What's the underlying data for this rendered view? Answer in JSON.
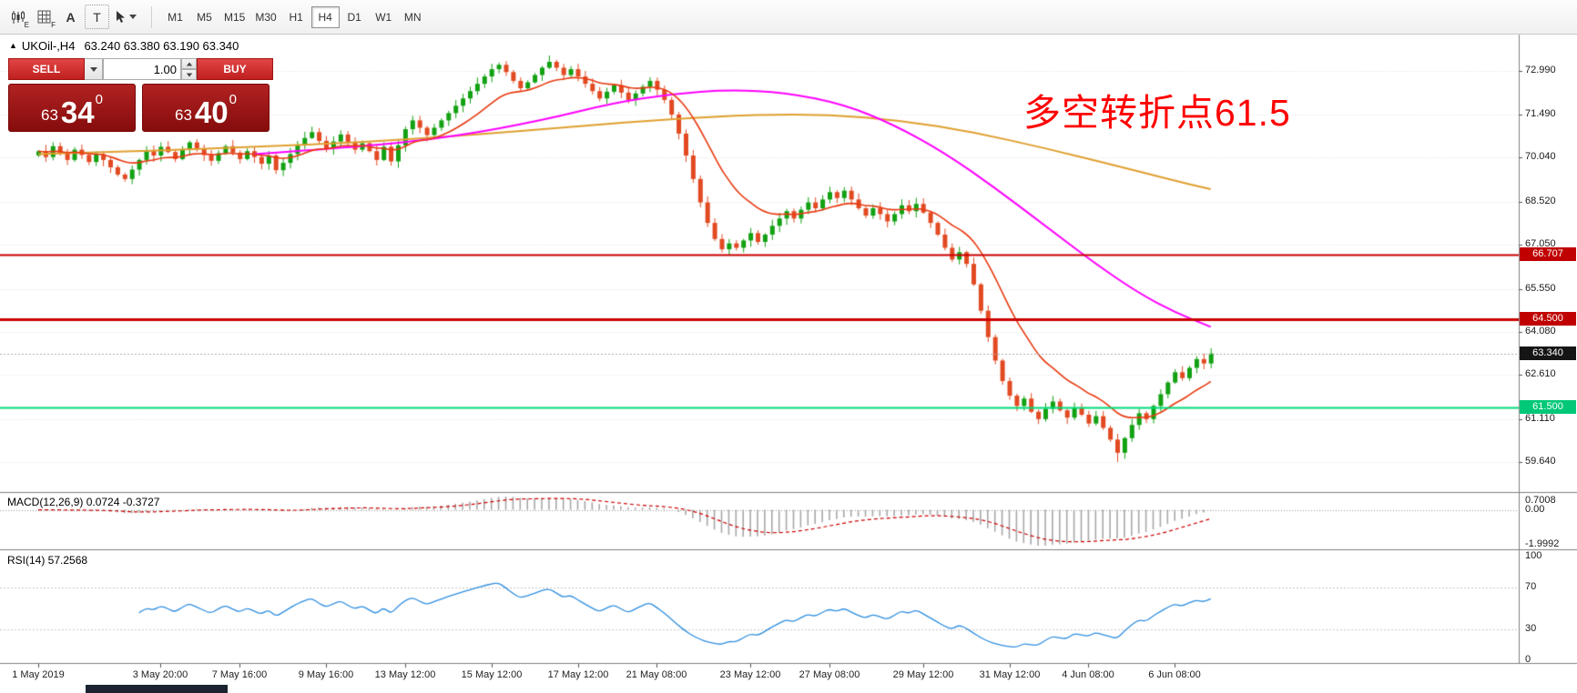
{
  "toolbar": {
    "glyph_e": "E",
    "glyph_f": "F",
    "glyph_a": "A",
    "glyph_t": "T",
    "timeframes": [
      {
        "label": "M1"
      },
      {
        "label": "M5"
      },
      {
        "label": "M15"
      },
      {
        "label": "M30"
      },
      {
        "label": "H1"
      },
      {
        "label": "H4",
        "active": true
      },
      {
        "label": "D1"
      },
      {
        "label": "W1"
      },
      {
        "label": "MN"
      }
    ]
  },
  "chart_header": {
    "collapse_glyph": "▲",
    "symbol": "UKOil-,H4",
    "ohlc": "63.240 63.380 63.190 63.340"
  },
  "trade_panel": {
    "sell_label": "SELL",
    "buy_label": "BUY",
    "volume": "1.00",
    "bid": {
      "prefix": "63",
      "big": "34",
      "sup": "0"
    },
    "ask": {
      "prefix": "63",
      "big": "40",
      "sup": "0"
    }
  },
  "annotation": {
    "text": "多空转折点61.5",
    "color": "#FF0000"
  },
  "price_axis": {
    "labels": [
      "72.990",
      "71.490",
      "70.040",
      "68.520",
      "67.050",
      "65.550",
      "64.080",
      "62.610",
      "61.110",
      "59.640"
    ]
  },
  "price_tags": [
    {
      "text": "66.707",
      "price": 66.707,
      "bg": "#C00000",
      "fg": "#FFFFFF"
    },
    {
      "text": "64.500",
      "price": 64.5,
      "bg": "#C00000",
      "fg": "#FFFFFF"
    },
    {
      "text": "63.340",
      "price": 63.34,
      "bg": "#151515",
      "fg": "#FFFFFF"
    },
    {
      "text": "61.500",
      "price": 61.5,
      "bg": "#00C878",
      "fg": "#FFFFFF"
    }
  ],
  "hlines": [
    {
      "price": 66.707,
      "color": "#CC0000",
      "width": 2
    },
    {
      "price": 64.5,
      "color": "#CC0000",
      "width": 3
    },
    {
      "price": 61.5,
      "color": "#00DC78",
      "width": 2
    }
  ],
  "current_price": {
    "price": 63.34,
    "line_color": "#AAAAAA"
  },
  "time_axis": {
    "labels": [
      {
        "text": "1 May 2019",
        "index": 0
      },
      {
        "text": "3 May 20:00",
        "index": 17
      },
      {
        "text": "7 May 16:00",
        "index": 28
      },
      {
        "text": "9 May 16:00",
        "index": 40
      },
      {
        "text": "13 May 12:00",
        "index": 51
      },
      {
        "text": "15 May 12:00",
        "index": 63
      },
      {
        "text": "17 May 12:00",
        "index": 75
      },
      {
        "text": "21 May 08:00",
        "index": 86
      },
      {
        "text": "23 May 12:00",
        "index": 99
      },
      {
        "text": "27 May 08:00",
        "index": 110
      },
      {
        "text": "29 May 12:00",
        "index": 123
      },
      {
        "text": "31 May 12:00",
        "index": 135
      },
      {
        "text": "4 Jun 08:00",
        "index": 146
      },
      {
        "text": "6 Jun 08:00",
        "index": 158
      }
    ]
  },
  "indicators": {
    "macd": {
      "label": "MACD(12,26,9) 0.0724 -0.3727",
      "axis_top": "0.7008",
      "axis_zero": "0.00",
      "axis_bottom": "-1.9992",
      "histogram_color": "#A8A8A8",
      "signal_color": "#CC0000"
    },
    "rsi": {
      "label": "RSI(14) 57.2568",
      "axis": [
        "100",
        "70",
        "30",
        "0"
      ],
      "levels": [
        70,
        30
      ],
      "line_color": "#2F8FE0"
    }
  },
  "chart_data": {
    "type": "candlestick",
    "symbol": "UKOil-",
    "timeframe": "H4",
    "up_color": "#12A112",
    "down_color": "#E24A22",
    "open_first": 70.1,
    "wick": 0.18,
    "y_scale": {
      "price_top": 74.17,
      "price_bottom": 58.61
    },
    "closes": [
      70.25,
      70.05,
      70.42,
      70.18,
      69.95,
      70.3,
      70.12,
      69.88,
      70.15,
      69.95,
      69.7,
      69.45,
      69.3,
      69.62,
      69.95,
      70.28,
      70.1,
      70.4,
      70.22,
      69.98,
      70.3,
      70.55,
      70.35,
      70.12,
      69.92,
      70.18,
      70.42,
      70.2,
      69.98,
      70.25,
      70.05,
      69.82,
      70.1,
      69.6,
      69.85,
      70.15,
      70.45,
      70.7,
      70.9,
      70.6,
      70.35,
      70.58,
      70.82,
      70.55,
      70.3,
      70.52,
      70.25,
      69.95,
      70.4,
      69.9,
      70.45,
      71.0,
      71.3,
      71.05,
      70.8,
      71.05,
      71.3,
      71.55,
      71.8,
      72.05,
      72.3,
      72.55,
      72.8,
      73.05,
      73.2,
      72.95,
      72.65,
      72.4,
      72.6,
      72.85,
      73.1,
      73.3,
      73.1,
      72.85,
      73.05,
      72.8,
      72.55,
      72.3,
      72.05,
      72.28,
      72.5,
      72.25,
      72.0,
      72.22,
      72.45,
      72.65,
      72.35,
      72.0,
      71.5,
      70.85,
      70.1,
      69.3,
      68.5,
      67.8,
      67.25,
      66.9,
      67.1,
      66.95,
      67.2,
      67.45,
      67.15,
      67.4,
      67.7,
      67.95,
      68.2,
      67.95,
      68.25,
      68.5,
      68.3,
      68.6,
      68.85,
      68.65,
      68.9,
      68.6,
      68.3,
      68.05,
      68.3,
      68.1,
      67.85,
      68.1,
      68.4,
      68.2,
      68.45,
      68.15,
      67.8,
      67.4,
      66.95,
      66.55,
      66.8,
      66.4,
      65.7,
      64.8,
      63.9,
      63.1,
      62.4,
      61.9,
      61.55,
      61.8,
      61.35,
      61.1,
      61.45,
      61.7,
      61.4,
      61.15,
      61.5,
      61.25,
      60.95,
      61.2,
      60.8,
      60.4,
      59.95,
      60.45,
      60.9,
      61.3,
      61.1,
      61.55,
      61.95,
      62.35,
      62.7,
      62.5,
      62.85,
      63.15,
      63.0,
      63.34
    ],
    "ma": {
      "fast": {
        "type": "ema",
        "period": 13,
        "color": "#E83A10",
        "width": 1.6
      },
      "medium": {
        "color": "#FF00FF",
        "width": 2,
        "points": [
          [
            30,
            70.15
          ],
          [
            45,
            70.4
          ],
          [
            58,
            70.75
          ],
          [
            70,
            71.3
          ],
          [
            80,
            71.9
          ],
          [
            88,
            72.2
          ],
          [
            96,
            72.35
          ],
          [
            104,
            72.25
          ],
          [
            112,
            71.85
          ],
          [
            119,
            71.15
          ],
          [
            126,
            70.2
          ],
          [
            133,
            69.0
          ],
          [
            140,
            67.7
          ],
          [
            147,
            66.4
          ],
          [
            153,
            65.4
          ],
          [
            158,
            64.75
          ],
          [
            163,
            64.25
          ]
        ]
      },
      "slow": {
        "color": "#E0A030",
        "width": 2,
        "points": [
          [
            0,
            70.15
          ],
          [
            15,
            70.25
          ],
          [
            30,
            70.4
          ],
          [
            45,
            70.55
          ],
          [
            60,
            70.8
          ],
          [
            75,
            71.1
          ],
          [
            88,
            71.35
          ],
          [
            100,
            71.5
          ],
          [
            110,
            71.5
          ],
          [
            120,
            71.3
          ],
          [
            130,
            70.9
          ],
          [
            140,
            70.35
          ],
          [
            150,
            69.75
          ],
          [
            157,
            69.3
          ],
          [
            163,
            68.95
          ]
        ]
      }
    }
  }
}
